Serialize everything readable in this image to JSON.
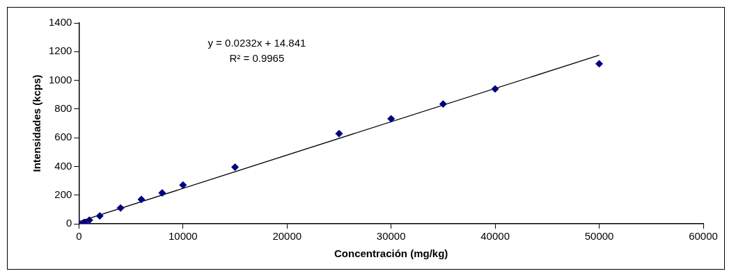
{
  "chart_data": {
    "type": "scatter",
    "xlabel": "Concentración (mg/kg)",
    "ylabel": "Intensidades (kcps)",
    "annotations": [
      "y = 0.0232x + 14.841",
      "R² = 0.9965"
    ],
    "series": [
      {
        "color": "#000080",
        "marker": "diamond",
        "x": [
          0,
          500,
          1000,
          2000,
          4000,
          6000,
          8000,
          10000,
          15000,
          25000,
          30000,
          35000,
          40000,
          50000
        ],
        "values": [
          0,
          10,
          25,
          55,
          110,
          170,
          215,
          270,
          395,
          628,
          732,
          835,
          940,
          1115
        ]
      },
      {
        "type": "line",
        "color": "#000000",
        "marker": "none",
        "x": [
          0,
          50000
        ],
        "values": [
          15,
          1175
        ]
      }
    ],
    "xlim": [
      0,
      60000
    ],
    "xticks": [
      0,
      10000,
      20000,
      30000,
      40000,
      50000,
      60000
    ],
    "ylim": [
      0,
      1400
    ],
    "yticks": [
      0,
      200,
      400,
      600,
      800,
      1000,
      1200,
      1400
    ],
    "grid": false,
    "legend": false
  }
}
